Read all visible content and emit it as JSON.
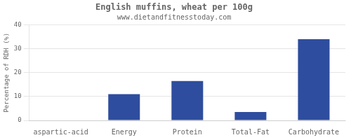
{
  "chart_data": {
    "type": "bar",
    "title": "English muffins, wheat per 100g",
    "subtitle": "www.dietandfitnesstoday.com",
    "categories": [
      "aspartic-acid",
      "Energy",
      "Protein",
      "Total-Fat",
      "Carbohydrate"
    ],
    "values": [
      0,
      11,
      16.5,
      3.5,
      34
    ],
    "color": "#2e4d9e",
    "ylabel": "Percentage of RDH (%)",
    "ylim": [
      0,
      40
    ],
    "yticks": [
      0,
      10,
      20,
      30,
      40
    ],
    "grid": true
  }
}
